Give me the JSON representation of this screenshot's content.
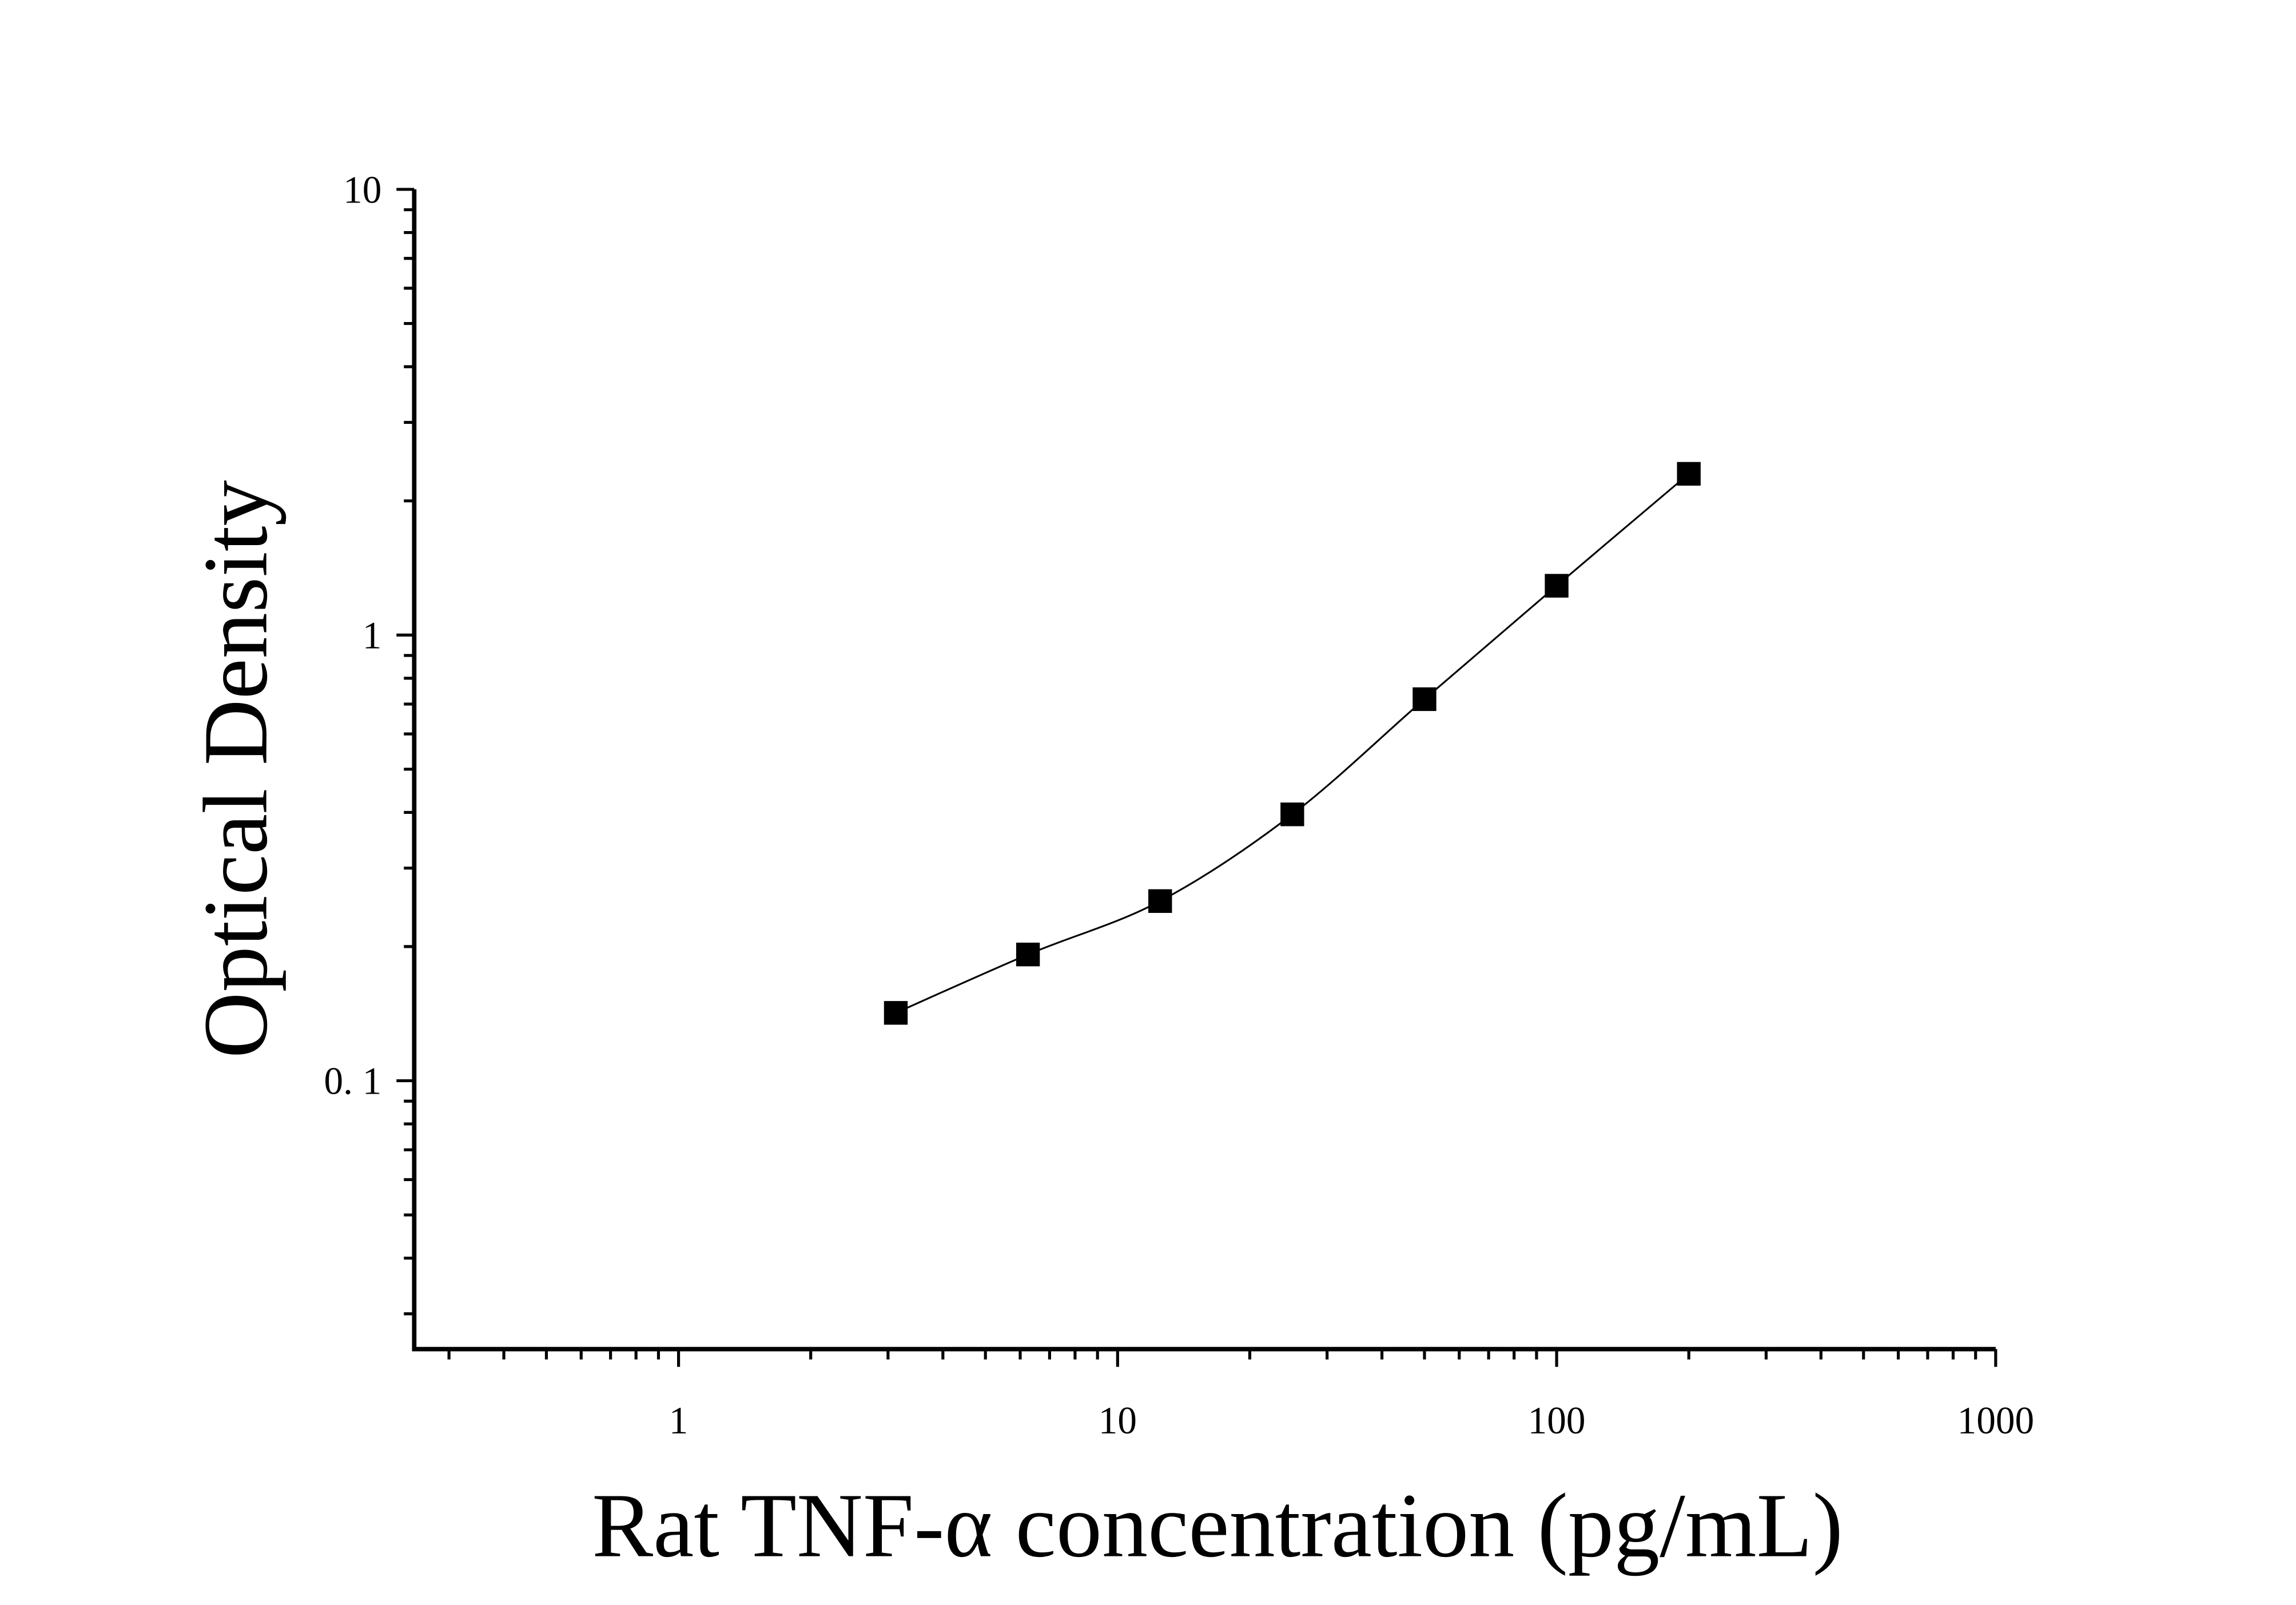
{
  "chart_data": {
    "type": "scatter",
    "title": "",
    "xlabel": "Rat TNF-α concentration (pg/mL)",
    "ylabel": "Optical Density",
    "xscale": "log",
    "yscale": "log",
    "xlim": [
      0.25,
      1000
    ],
    "ylim": [
      0.025,
      10
    ],
    "x_ticks": [
      "1",
      "10",
      "100",
      "1000"
    ],
    "y_ticks": [
      "0. 1",
      "1",
      "10"
    ],
    "grid": false,
    "legend": "none",
    "fit_line": true,
    "marker": "square",
    "color": "#000000",
    "series": [
      {
        "x": [
          3.125,
          6.25,
          12.5,
          25,
          50,
          100,
          200
        ],
        "y": [
          0.142,
          0.192,
          0.253,
          0.396,
          0.718,
          1.29,
          2.3
        ]
      }
    ]
  }
}
